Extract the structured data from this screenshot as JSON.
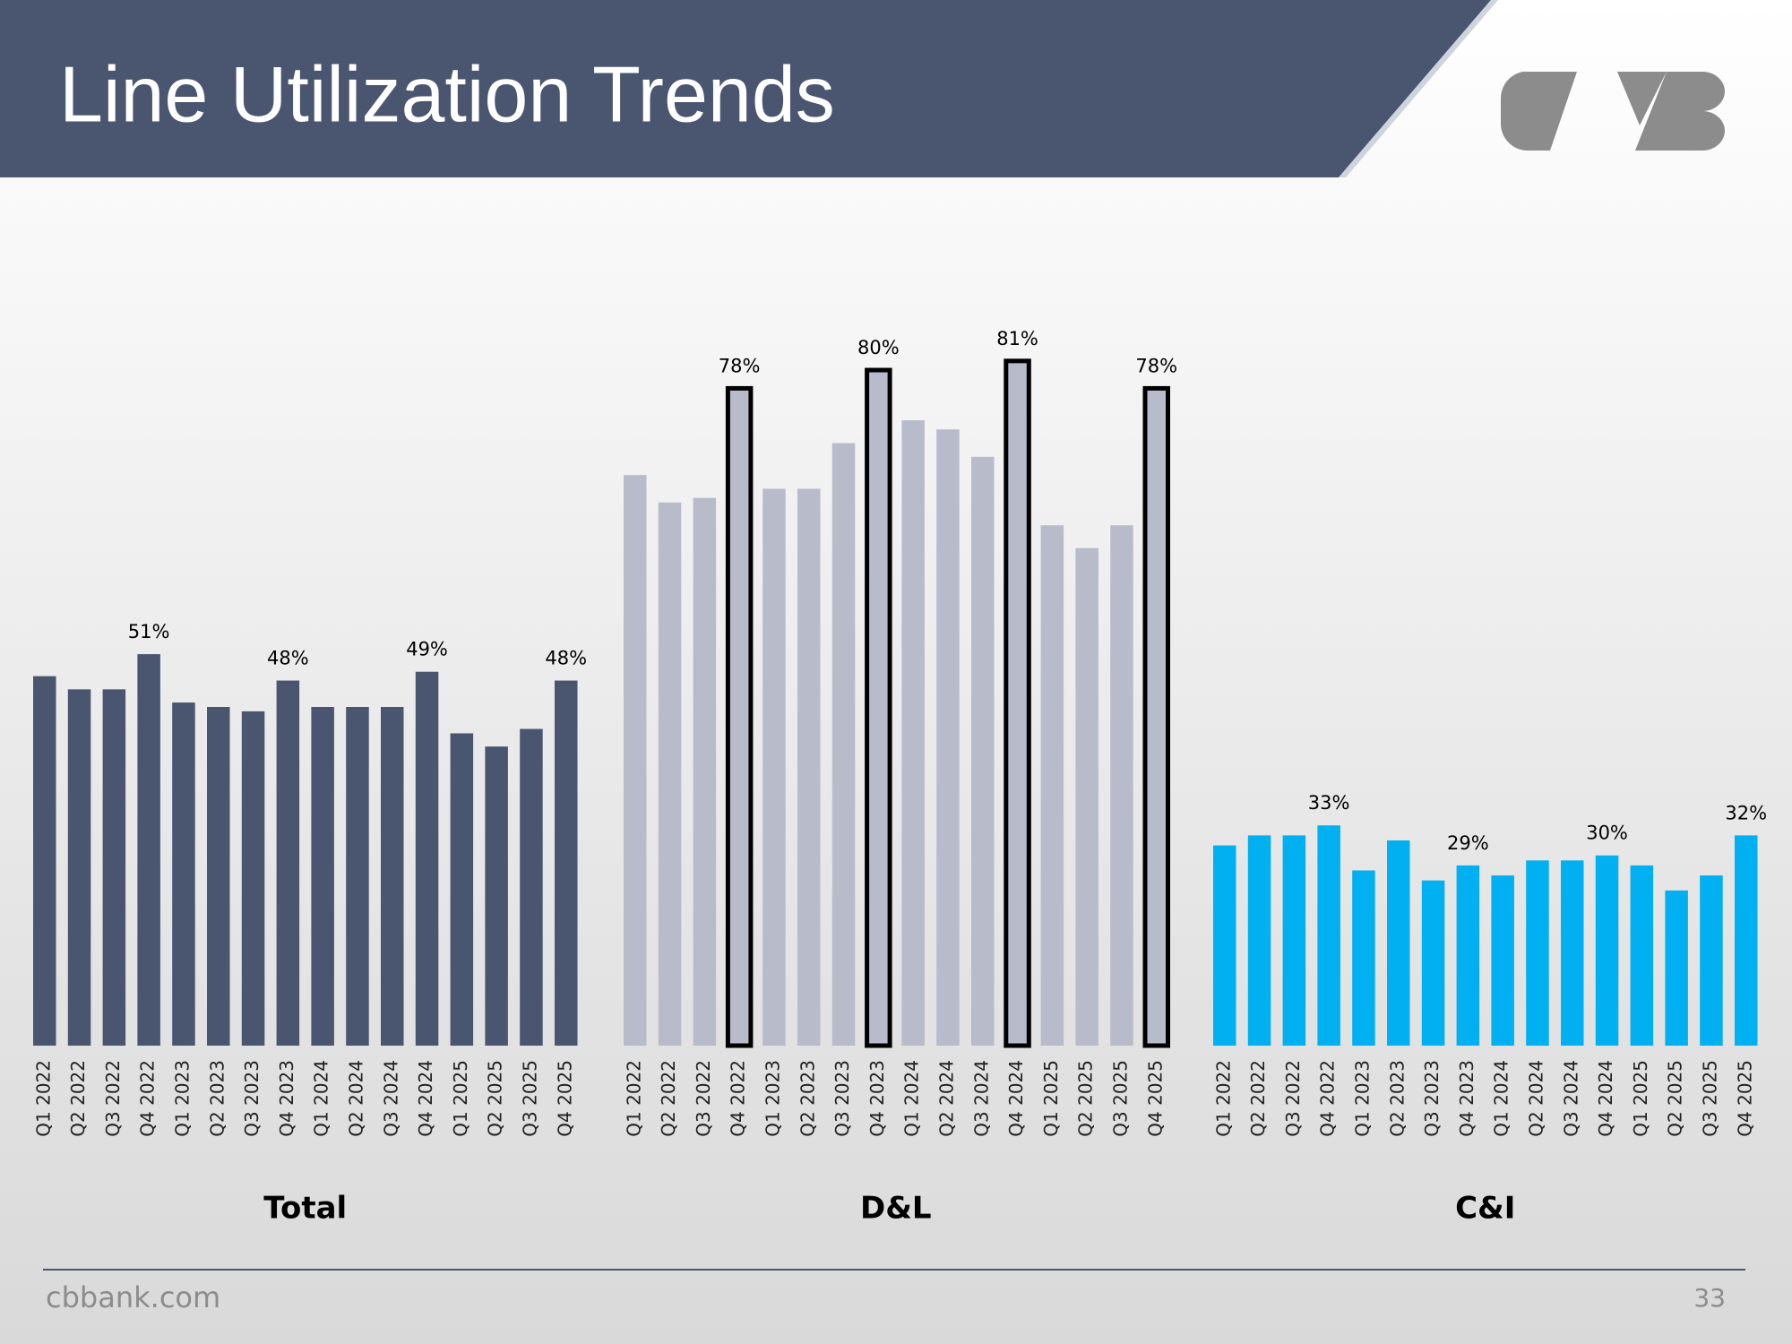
{
  "header": {
    "title": "Line Utilization Trends"
  },
  "chart_data": [
    {
      "type": "bar",
      "title": "Total",
      "categories": [
        "Q1 2022",
        "Q2 2022",
        "Q3 2022",
        "Q4 2022",
        "Q1 2023",
        "Q2 2023",
        "Q3 2023",
        "Q4 2023",
        "Q1 2024",
        "Q2 2024",
        "Q3 2024",
        "Q4 2024",
        "Q1 2025",
        "Q2 2025",
        "Q3 2025",
        "Q4 2025"
      ],
      "values": [
        48.5,
        47,
        47,
        51,
        45.5,
        45,
        44.5,
        48,
        45,
        45,
        45,
        49,
        42,
        40.5,
        42.5,
        48
      ],
      "value_labels": [
        null,
        null,
        null,
        "51%",
        null,
        null,
        null,
        "48%",
        null,
        null,
        null,
        "49%",
        null,
        null,
        null,
        "48%"
      ],
      "color": "#4a5570",
      "ylim": [
        6.5,
        89
      ]
    },
    {
      "type": "bar",
      "title": "D&L",
      "categories": [
        "Q1 2022",
        "Q2 2022",
        "Q3 2022",
        "Q4 2022",
        "Q1 2023",
        "Q2 2023",
        "Q3 2023",
        "Q4 2023",
        "Q1 2024",
        "Q2 2024",
        "Q3 2024",
        "Q4 2024",
        "Q1 2025",
        "Q2 2025",
        "Q3 2025",
        "Q4 2025"
      ],
      "values": [
        68.5,
        65.5,
        66,
        78,
        67,
        67,
        72,
        80,
        74.5,
        73.5,
        70.5,
        81,
        63,
        60.5,
        63,
        78
      ],
      "value_labels": [
        null,
        null,
        null,
        "78%",
        null,
        null,
        null,
        "80%",
        null,
        null,
        null,
        "81%",
        null,
        null,
        null,
        "78%"
      ],
      "color": "#b8bcca",
      "outline": "#000000",
      "ylim": [
        6,
        85.5
      ]
    },
    {
      "type": "bar",
      "title": "C&I",
      "categories": [
        "Q1 2022",
        "Q2 2022",
        "Q3 2022",
        "Q4 2022",
        "Q1 2023",
        "Q2 2023",
        "Q3 2023",
        "Q4 2023",
        "Q1 2024",
        "Q2 2024",
        "Q3 2024",
        "Q4 2024",
        "Q1 2025",
        "Q2 2025",
        "Q3 2025",
        "Q4 2025"
      ],
      "values": [
        31,
        32,
        32,
        33,
        28.5,
        31.5,
        27.5,
        29,
        28,
        29.5,
        29.5,
        30,
        29,
        26.5,
        28,
        32
      ],
      "value_labels": [
        null,
        null,
        null,
        "33%",
        null,
        null,
        null,
        "29%",
        null,
        null,
        null,
        "30%",
        null,
        null,
        null,
        "32%"
      ],
      "color": "#00b0f0",
      "ylim": [
        11,
        83.5
      ]
    }
  ],
  "footer": {
    "website": "cbbank.com",
    "page_number": "33"
  }
}
